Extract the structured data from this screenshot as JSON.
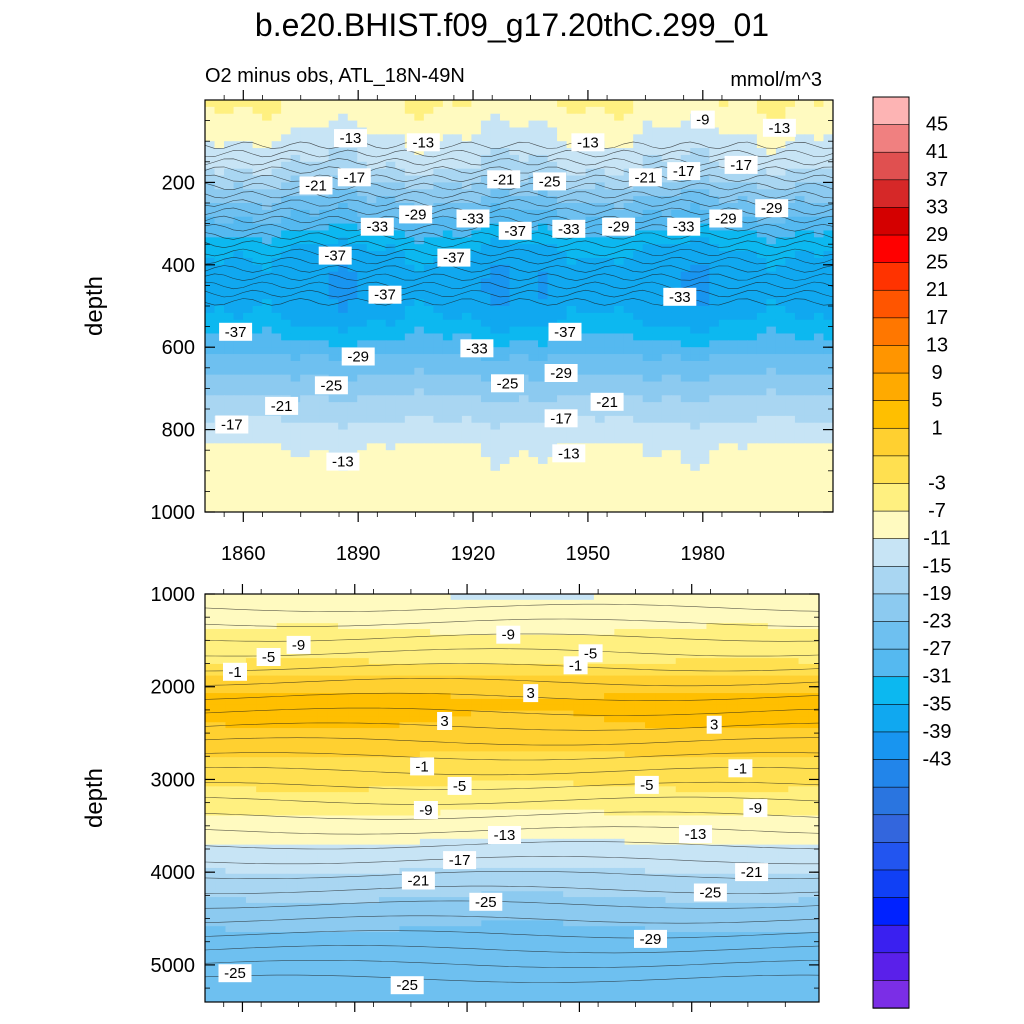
{
  "title": "b.e20.BHIST.f09_g17.20thC.299_01",
  "panel_top": {
    "left_label": "O2 minus obs, ATL_18N-49N",
    "right_label": "mmol/m^3",
    "ylabel": "depth"
  },
  "panel_bottom": {
    "ylabel": "depth"
  },
  "chart_data": [
    {
      "type": "heatmap",
      "name_hint": "upper ocean contour panel",
      "x_range": [
        1850,
        2014
      ],
      "x_ticks": [
        1860,
        1890,
        1920,
        1950,
        1980
      ],
      "y_range": [
        0,
        1000
      ],
      "y_ticks": [
        200,
        400,
        600,
        800,
        1000
      ],
      "y_inverted": true,
      "contour_labels": [
        {
          "x": 1888,
          "y": 95,
          "value": "-13"
        },
        {
          "x": 1907,
          "y": 105,
          "value": "-13"
        },
        {
          "x": 1950,
          "y": 105,
          "value": "-13"
        },
        {
          "x": 1980,
          "y": 50,
          "value": "-9"
        },
        {
          "x": 2000,
          "y": 70,
          "value": "-13"
        },
        {
          "x": 1879,
          "y": 210,
          "value": "-21"
        },
        {
          "x": 1889,
          "y": 190,
          "value": "-17"
        },
        {
          "x": 1928,
          "y": 195,
          "value": "-21"
        },
        {
          "x": 1940,
          "y": 200,
          "value": "-25"
        },
        {
          "x": 1965,
          "y": 190,
          "value": "-21"
        },
        {
          "x": 1975,
          "y": 175,
          "value": "-17"
        },
        {
          "x": 1990,
          "y": 160,
          "value": "-17"
        },
        {
          "x": 1905,
          "y": 280,
          "value": "-29"
        },
        {
          "x": 1895,
          "y": 310,
          "value": "-33"
        },
        {
          "x": 1920,
          "y": 290,
          "value": "-33"
        },
        {
          "x": 1931,
          "y": 320,
          "value": "-37"
        },
        {
          "x": 1945,
          "y": 315,
          "value": "-33"
        },
        {
          "x": 1958,
          "y": 310,
          "value": "-29"
        },
        {
          "x": 1975,
          "y": 310,
          "value": "-33"
        },
        {
          "x": 1986,
          "y": 290,
          "value": "-29"
        },
        {
          "x": 1998,
          "y": 265,
          "value": "-29"
        },
        {
          "x": 1884,
          "y": 380,
          "value": "-37"
        },
        {
          "x": 1915,
          "y": 385,
          "value": "-37"
        },
        {
          "x": 1897,
          "y": 475,
          "value": "-37"
        },
        {
          "x": 1974,
          "y": 480,
          "value": "-33"
        },
        {
          "x": 1858,
          "y": 565,
          "value": "-37"
        },
        {
          "x": 1944,
          "y": 565,
          "value": "-37"
        },
        {
          "x": 1890,
          "y": 625,
          "value": "-29"
        },
        {
          "x": 1921,
          "y": 605,
          "value": "-33"
        },
        {
          "x": 1943,
          "y": 665,
          "value": "-29"
        },
        {
          "x": 1883,
          "y": 695,
          "value": "-25"
        },
        {
          "x": 1929,
          "y": 690,
          "value": "-25"
        },
        {
          "x": 1870,
          "y": 745,
          "value": "-21"
        },
        {
          "x": 1955,
          "y": 735,
          "value": "-21"
        },
        {
          "x": 1857,
          "y": 790,
          "value": "-17"
        },
        {
          "x": 1943,
          "y": 775,
          "value": "-17"
        },
        {
          "x": 1886,
          "y": 880,
          "value": "-13"
        },
        {
          "x": 1945,
          "y": 860,
          "value": "-13"
        }
      ]
    },
    {
      "type": "heatmap",
      "name_hint": "deep ocean contour panel",
      "x_range": [
        1850,
        2014
      ],
      "x_ticks": [
        1860,
        1890,
        1920,
        1950,
        1980
      ],
      "y_range": [
        1000,
        5400
      ],
      "y_ticks": [
        1000,
        2000,
        3000,
        4000,
        5000
      ],
      "y_inverted": true,
      "contour_labels": [
        {
          "x": 1875,
          "y": 1560,
          "value": "-9"
        },
        {
          "x": 1867,
          "y": 1690,
          "value": "-5"
        },
        {
          "x": 1858,
          "y": 1850,
          "value": "-1"
        },
        {
          "x": 1931,
          "y": 1450,
          "value": "-9"
        },
        {
          "x": 1953,
          "y": 1650,
          "value": "-5"
        },
        {
          "x": 1949,
          "y": 1780,
          "value": "-1"
        },
        {
          "x": 1937,
          "y": 2080,
          "value": "3"
        },
        {
          "x": 1914,
          "y": 2380,
          "value": "3"
        },
        {
          "x": 1986,
          "y": 2420,
          "value": "3"
        },
        {
          "x": 1908,
          "y": 2870,
          "value": "-1"
        },
        {
          "x": 1993,
          "y": 2890,
          "value": "-1"
        },
        {
          "x": 1918,
          "y": 3080,
          "value": "-5"
        },
        {
          "x": 1968,
          "y": 3070,
          "value": "-5"
        },
        {
          "x": 1909,
          "y": 3340,
          "value": "-9"
        },
        {
          "x": 1997,
          "y": 3320,
          "value": "-9"
        },
        {
          "x": 1930,
          "y": 3610,
          "value": "-13"
        },
        {
          "x": 1981,
          "y": 3600,
          "value": "-13"
        },
        {
          "x": 1918,
          "y": 3880,
          "value": "-17"
        },
        {
          "x": 1907,
          "y": 4100,
          "value": "-21"
        },
        {
          "x": 1996,
          "y": 4010,
          "value": "-21"
        },
        {
          "x": 1925,
          "y": 4330,
          "value": "-25"
        },
        {
          "x": 1985,
          "y": 4230,
          "value": "-25"
        },
        {
          "x": 1969,
          "y": 4730,
          "value": "-29"
        },
        {
          "x": 1858,
          "y": 5100,
          "value": "-25"
        },
        {
          "x": 1904,
          "y": 5230,
          "value": "-25"
        }
      ]
    }
  ],
  "colorbar": {
    "labels": [
      "45",
      "41",
      "37",
      "33",
      "29",
      "25",
      "21",
      "17",
      "13",
      "9",
      "5",
      "1",
      "-3",
      "-7",
      "-11",
      "-15",
      "-19",
      "-23",
      "-27",
      "-31",
      "-35",
      "-39",
      "-43"
    ],
    "colors": [
      "#fdb4b4",
      "#f08080",
      "#e05050",
      "#d62828",
      "#d40000",
      "#ff0000",
      "#ff3300",
      "#ff5500",
      "#ff7700",
      "#ff9500",
      "#ffaa00",
      "#ffbf00",
      "#ffd030",
      "#ffe050",
      "#fff080",
      "#fffac0",
      "#c7e4f5",
      "#a9d6f2",
      "#8ccaf0",
      "#6ec0f0",
      "#55b9f0",
      "#0cb8f0",
      "#10a8f0",
      "#1895f0",
      "#2285ea",
      "#2a75e0",
      "#3366dd",
      "#2255f0",
      "#1040f5",
      "#0022ff",
      "#3a20f0",
      "#5a20ea",
      "#7b2ee6"
    ]
  }
}
